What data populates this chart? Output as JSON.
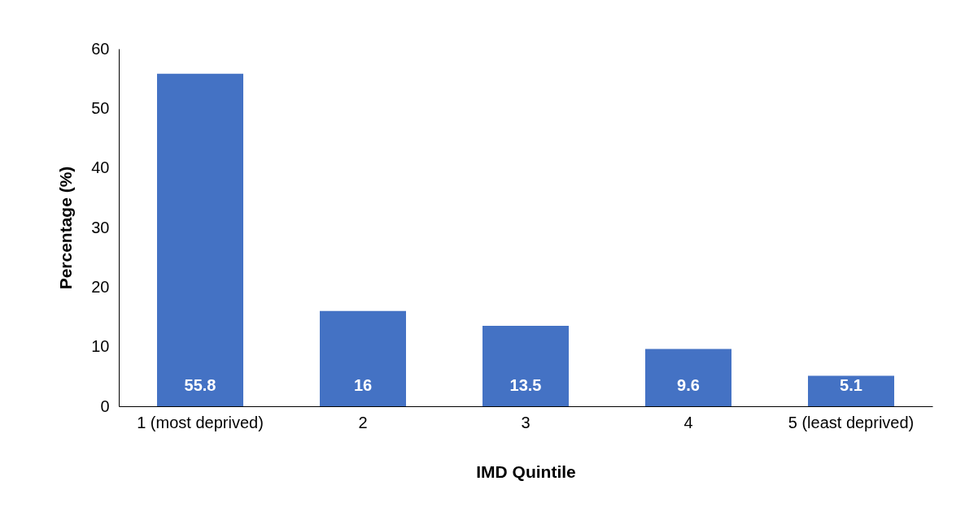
{
  "chart_data": {
    "type": "bar",
    "xlabel": "IMD Quintile",
    "ylabel": "Percentage (%)",
    "categories": [
      "1 (most deprived)",
      "2",
      "3",
      "4",
      "5 (least deprived)"
    ],
    "values": [
      55.8,
      16,
      13.5,
      9.6,
      5.1
    ],
    "color": "#4472c4",
    "ylim": [
      0,
      60
    ],
    "yticks": [
      0,
      10,
      20,
      30,
      40,
      50,
      60
    ],
    "grid": false,
    "data_labels": true
  }
}
